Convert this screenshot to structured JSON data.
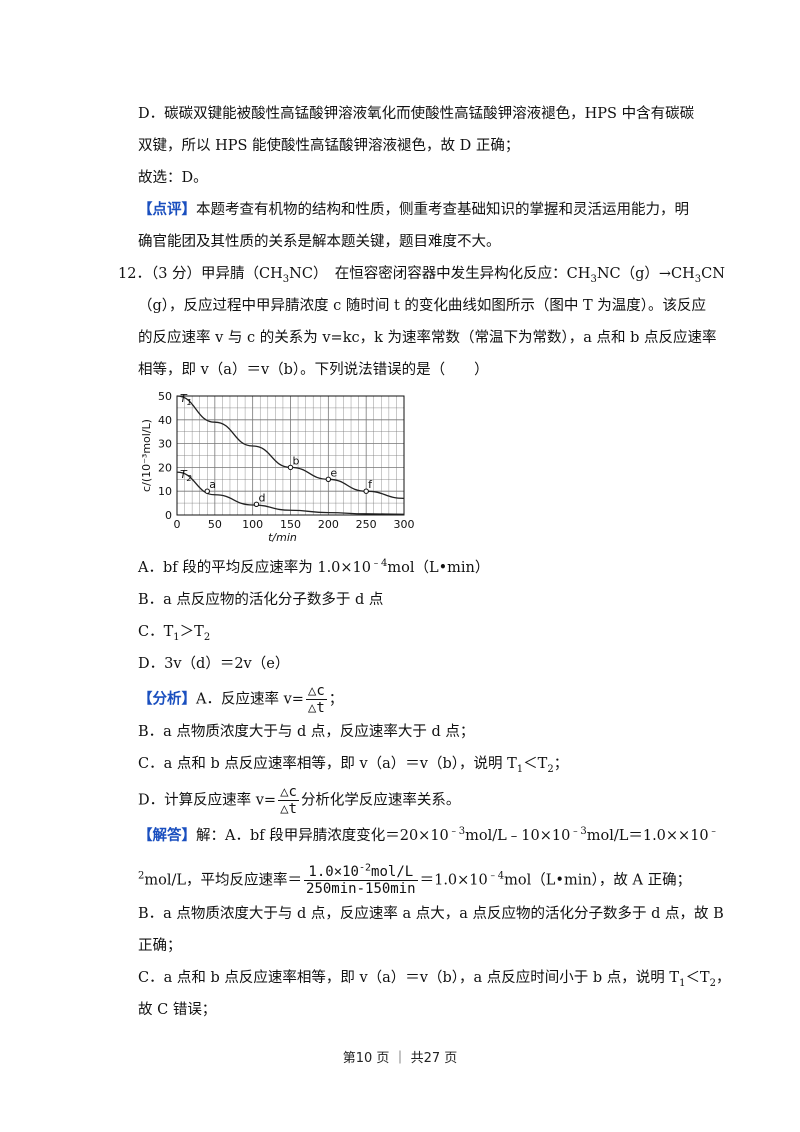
{
  "lines": {
    "d_explain_1": "D．碳碳双键能被酸性高锰酸钾溶液氧化而使酸性高锰酸钾溶液褪色，HPS 中含有碳碳",
    "d_explain_2": "双键，所以 HPS 能使酸性高锰酸钾溶液褪色，故 D 正确；",
    "choose": "故选：D。",
    "review_tag": "【点评】",
    "review_1": "本题考查有机物的结构和性质，侧重考查基础知识的掌握和灵活运用能力，明",
    "review_2": "确官能团及其性质的关系是解本题关键，题目难度不大。",
    "q12_1a": "12．（3 分）甲异腈（CH",
    "q12_1b": "NC）　在恒容密闭容器中发生异构化反应：CH",
    "q12_1c": "NC（g）→CH",
    "q12_1d": "CN",
    "q12_2": "（g），反应过程中甲异腈浓度 c 随时间 t 的变化曲线如图所示（图中 T 为温度）。该反应",
    "q12_3": "的反应速率 v 与 c 的关系为 v=kc，k 为速率常数（常温下为常数），a 点和 b 点反应速率",
    "q12_4": "相等，即 v（a）＝v（b）。下列说法错误的是（　　）",
    "optA_a": "A．bf 段的平均反应速率为 1.0×10",
    "optA_b": "mol（L•min）",
    "optB": "B．a 点反应物的活化分子数多于 d 点",
    "optC_a": "C．T",
    "optC_b": "＞T",
    "optD": "D．3v（d）＝2v（e）",
    "analysis_tag": "【分析】",
    "analysis_A": "A．反应速率 v=",
    "analysis_B": "B．a 点物质浓度大于与 d 点，反应速率大于 d 点；",
    "analysis_C_a": "C．a 点和 b 点反应速率相等，即 v（a）＝v（b），说明 T",
    "analysis_C_b": "＜T",
    "analysis_D_a": "D．计算反应速率 v=",
    "analysis_D_b": "分析化学反应速率关系。",
    "answer_tag": "【解答】",
    "answer_1a": "解：A．bf 段甲异腈浓度变化＝20×10",
    "answer_1b": "mol/L﹣10×10",
    "answer_1c": "mol/L＝1.0××10",
    "answer_2a": "mol/L，平均反应速率＝",
    "answer_2b": "＝1.0×10",
    "answer_2c": "mol（L•min），故 A 正确；",
    "answer_B1": "B．a 点物质浓度大于与 d 点，反应速率 a 点大，a 点反应物的活化分子数多于 d 点，故 B",
    "answer_B2": "正确；",
    "answer_C1a": "C．a 点和 b 点反应速率相等，即 v（a）＝v（b），a 点反应时间小于 b 点，说明 T",
    "answer_C1b": "＜T",
    "answer_C2": "故 C 错误；"
  },
  "sub": {
    "three": "3",
    "one": "1",
    "two": "2"
  },
  "sup": {
    "neg4": "﹣4",
    "neg3": "﹣3",
    "neg": "﹣",
    "neg2": "﹣2",
    "two": "2"
  },
  "suffix": {
    "semi": "；",
    "comma": "，",
    "period": "。"
  },
  "frac": {
    "dc": "△c",
    "dt": "△t",
    "ans_num": "1.0×10",
    "ans_num_sup": "-2",
    "ans_num_unit": "mol/L",
    "ans_den": "250min-150min"
  },
  "footer": "第10 页 ｜ 共27 页",
  "chart_data": {
    "type": "line",
    "xlabel": "t/min",
    "ylabel": "c/(10⁻³mol/L)",
    "xlim": [
      0,
      300
    ],
    "ylim": [
      0,
      50
    ],
    "xticks": [
      "0",
      "50",
      "100",
      "150",
      "200",
      "250",
      "300"
    ],
    "yticks": [
      "0",
      "10",
      "20",
      "30",
      "40",
      "50"
    ],
    "grid": true,
    "series": [
      {
        "name": "T1",
        "x": [
          0,
          50,
          100,
          150,
          200,
          250,
          300
        ],
        "y": [
          50,
          39,
          29,
          20,
          15,
          10,
          7
        ]
      },
      {
        "name": "T2",
        "x": [
          0,
          50,
          100,
          150,
          200,
          250,
          300
        ],
        "y": [
          18,
          8.5,
          4.2,
          2.0,
          1.0,
          0.5,
          0.3
        ]
      }
    ],
    "points": [
      {
        "label": "a",
        "x": 40,
        "y": 10,
        "series": "T2"
      },
      {
        "label": "b",
        "x": 150,
        "y": 20,
        "series": "T1"
      },
      {
        "label": "d",
        "x": 105,
        "y": 4.5,
        "series": "T2"
      },
      {
        "label": "e",
        "x": 200,
        "y": 15,
        "series": "T1"
      },
      {
        "label": "f",
        "x": 250,
        "y": 10,
        "series": "T1"
      }
    ],
    "series_labels": [
      {
        "main": "T",
        "sub": "1"
      },
      {
        "main": "T",
        "sub": "2"
      }
    ]
  }
}
